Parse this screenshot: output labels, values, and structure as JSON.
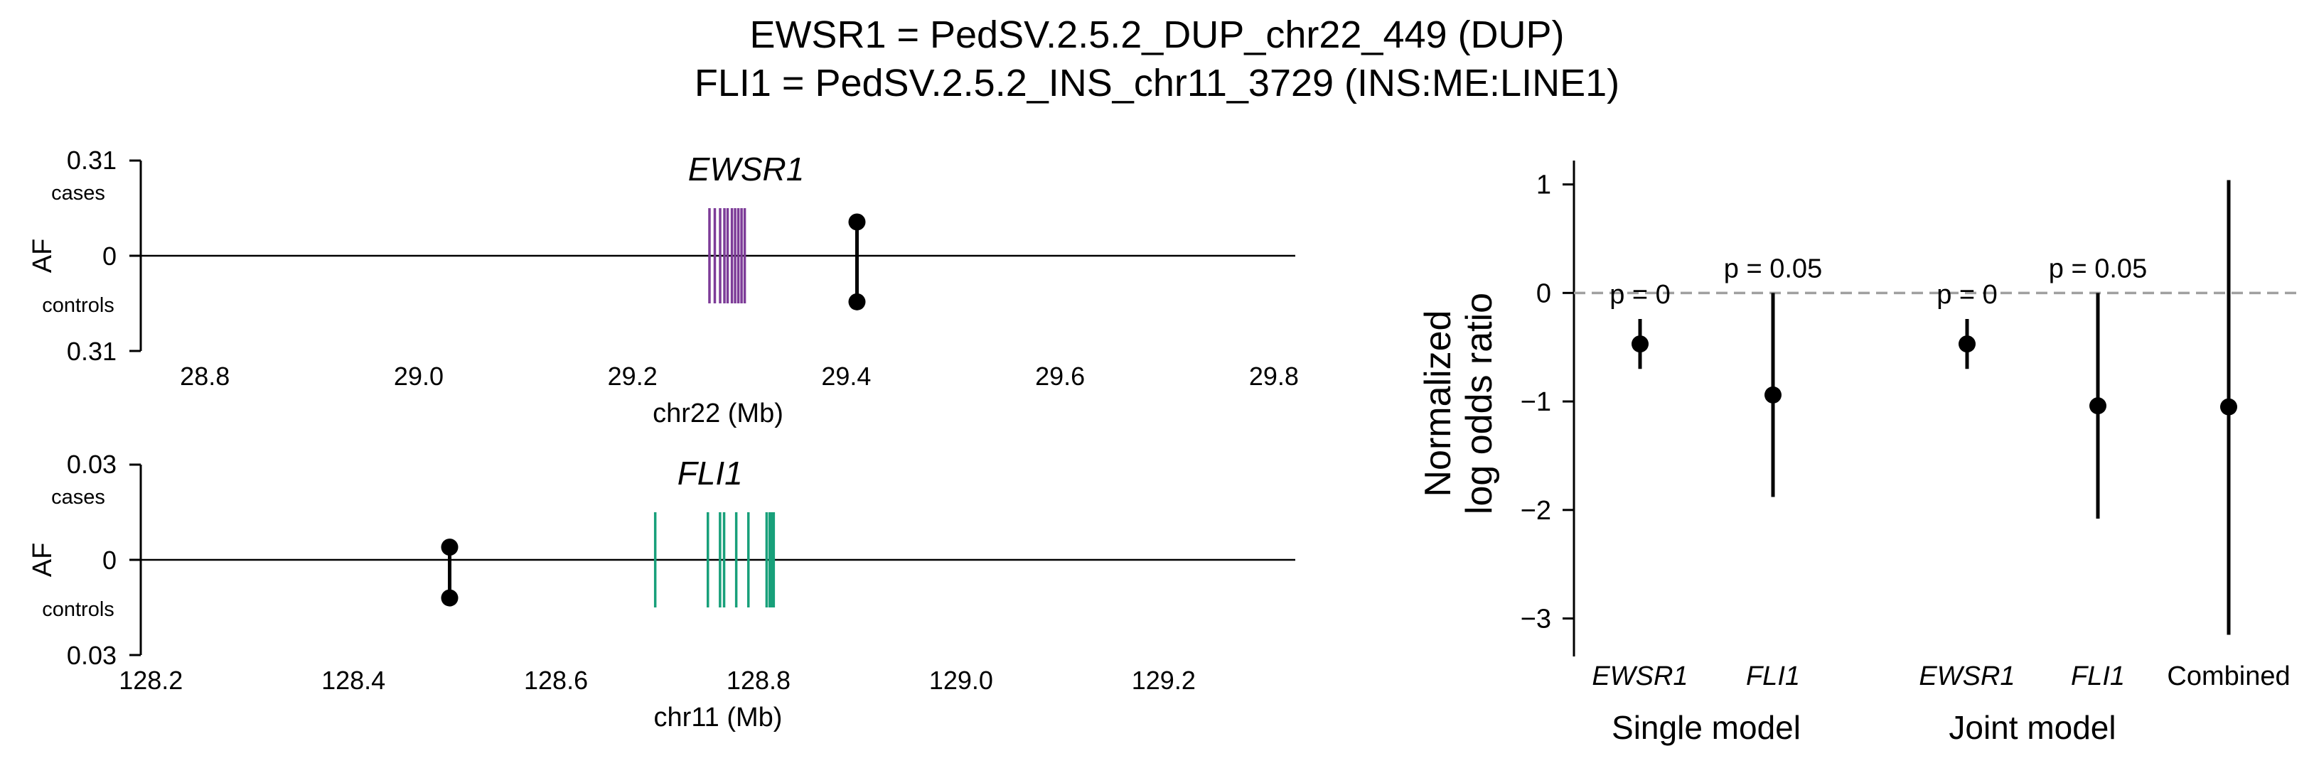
{
  "title_line1": "EWSR1 = PedSV.2.5.2_DUP_chr22_449 (DUP)",
  "title_line2": "FLI1 = PedSV.2.5.2_INS_chr11_3729 (INS:ME:LINE1)",
  "chart_data": [
    {
      "type": "locus",
      "gene_label": "EWSR1",
      "gene_color": "#7d3c98",
      "xlabel": "chr22 (Mb)",
      "ylabel": "AF",
      "xlim": [
        28.74,
        29.82
      ],
      "x_ticks": [
        "28.8",
        "29.0",
        "29.2",
        "29.4",
        "29.6",
        "29.8"
      ],
      "y_top_tick": "0.31",
      "y_mid_tick": "0",
      "y_bottom_tick": "0.31",
      "cases_label": "cases",
      "controls_label": "controls",
      "y_max": 0.31,
      "variant": {
        "position": 29.41,
        "af_cases": 0.11,
        "af_controls": 0.15
      },
      "exons": [
        29.272,
        29.277,
        29.282,
        29.286,
        29.289,
        29.293,
        29.296,
        29.299,
        29.302,
        29.305
      ],
      "exon_half_height": 0.155
    },
    {
      "type": "locus",
      "gene_label": "FLI1",
      "gene_color": "#18a07a",
      "xlabel": "chr11 (Mb)",
      "ylabel": "AF",
      "xlim": [
        128.19,
        129.33
      ],
      "x_ticks": [
        "128.2",
        "128.4",
        "128.6",
        "128.8",
        "129.0",
        "129.2"
      ],
      "y_top_tick": "0.03",
      "y_mid_tick": "0",
      "y_bottom_tick": "0.03",
      "cases_label": "cases",
      "controls_label": "controls",
      "y_max": 0.03,
      "variant": {
        "position": 128.495,
        "af_cases": 0.004,
        "af_controls": 0.012
      },
      "exons": [
        128.698,
        128.75,
        128.762,
        128.766,
        128.778,
        128.79,
        128.808,
        128.811,
        128.813,
        128.815
      ],
      "exon_half_height": 0.015
    },
    {
      "type": "forest",
      "ylabel_line1": "Normalized",
      "ylabel_line2": "log odds ratio",
      "ylim": [
        -3.35,
        1.22
      ],
      "y_ticks": [
        "1",
        "0",
        "−1",
        "−2",
        "−3"
      ],
      "reference_line": 0,
      "categories": [
        "EWSR1",
        "FLI1",
        "EWSR1",
        "FLI1",
        "Combined"
      ],
      "groups": [
        "Single model",
        "Joint model"
      ],
      "estimates": [
        {
          "label": "EWSR1",
          "value": -0.47,
          "lower": -0.7,
          "upper": -0.24,
          "p_text": "p = 0",
          "italic": true
        },
        {
          "label": "FLI1",
          "value": -0.94,
          "lower": -1.88,
          "upper": 0.0,
          "p_text": "p = 0.05",
          "italic": true
        },
        {
          "label": "EWSR1",
          "value": -0.47,
          "lower": -0.7,
          "upper": -0.24,
          "p_text": "p = 0",
          "italic": true
        },
        {
          "label": "FLI1",
          "value": -1.04,
          "lower": -2.08,
          "upper": 0.0,
          "p_text": "p = 0.05",
          "italic": true
        },
        {
          "label": "Combined",
          "value": -1.05,
          "lower": -3.15,
          "upper": 1.04,
          "p_text": "",
          "italic": false
        }
      ]
    }
  ]
}
